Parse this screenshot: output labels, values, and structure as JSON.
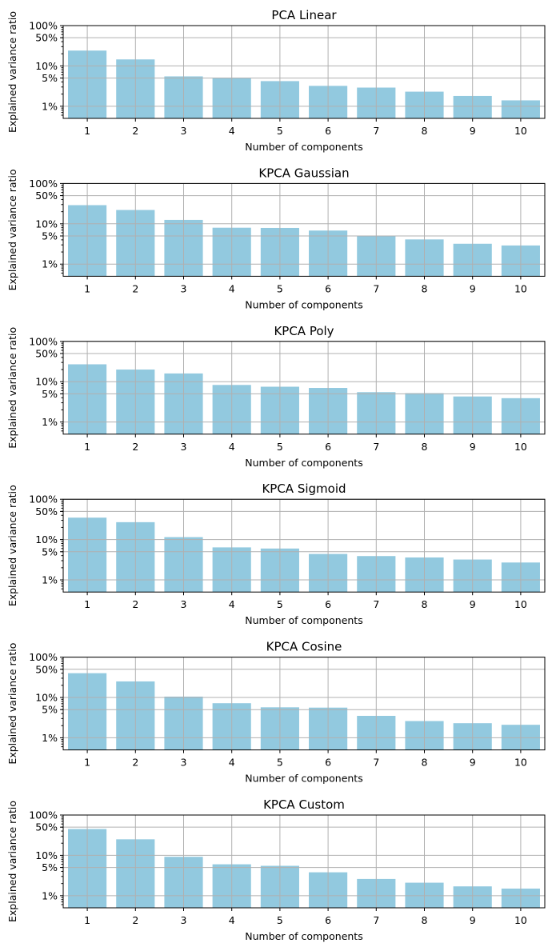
{
  "chart_data": [
    {
      "type": "bar",
      "title": "PCA Linear",
      "xlabel": "Number of components",
      "ylabel": "Explained variance ratio",
      "yscale": "log",
      "ylim": [
        0.005,
        1.0
      ],
      "yticks": [
        {
          "value": 0.01,
          "label": "1%"
        },
        {
          "value": 0.05,
          "label": "5%"
        },
        {
          "value": 0.1,
          "label": "10%"
        },
        {
          "value": 0.5,
          "label": "50%"
        },
        {
          "value": 1.0,
          "label": "100%"
        }
      ],
      "grid": true,
      "color": "#92c9df",
      "categories": [
        "1",
        "2",
        "3",
        "4",
        "5",
        "6",
        "7",
        "8",
        "9",
        "10"
      ],
      "values": [
        0.24,
        0.145,
        0.055,
        0.051,
        0.042,
        0.032,
        0.029,
        0.023,
        0.018,
        0.014
      ]
    },
    {
      "type": "bar",
      "title": "KPCA Gaussian",
      "xlabel": "Number of components",
      "ylabel": "Explained variance ratio",
      "yscale": "log",
      "ylim": [
        0.005,
        1.0
      ],
      "yticks": [
        {
          "value": 0.01,
          "label": "1%"
        },
        {
          "value": 0.05,
          "label": "5%"
        },
        {
          "value": 0.1,
          "label": "10%"
        },
        {
          "value": 0.5,
          "label": "50%"
        },
        {
          "value": 1.0,
          "label": "100%"
        }
      ],
      "grid": true,
      "color": "#92c9df",
      "categories": [
        "1",
        "2",
        "3",
        "4",
        "5",
        "6",
        "7",
        "8",
        "9",
        "10"
      ],
      "values": [
        0.29,
        0.22,
        0.125,
        0.08,
        0.079,
        0.068,
        0.049,
        0.041,
        0.032,
        0.029
      ]
    },
    {
      "type": "bar",
      "title": "KPCA Poly",
      "xlabel": "Number of components",
      "ylabel": "Explained variance ratio",
      "yscale": "log",
      "ylim": [
        0.005,
        1.0
      ],
      "yticks": [
        {
          "value": 0.01,
          "label": "1%"
        },
        {
          "value": 0.05,
          "label": "5%"
        },
        {
          "value": 0.1,
          "label": "10%"
        },
        {
          "value": 0.5,
          "label": "50%"
        },
        {
          "value": 1.0,
          "label": "100%"
        }
      ],
      "grid": true,
      "color": "#92c9df",
      "categories": [
        "1",
        "2",
        "3",
        "4",
        "5",
        "6",
        "7",
        "8",
        "9",
        "10"
      ],
      "values": [
        0.27,
        0.2,
        0.16,
        0.083,
        0.075,
        0.07,
        0.055,
        0.052,
        0.043,
        0.039
      ]
    },
    {
      "type": "bar",
      "title": "KPCA Sigmoid",
      "xlabel": "Number of components",
      "ylabel": "Explained variance ratio",
      "yscale": "log",
      "ylim": [
        0.005,
        1.0
      ],
      "yticks": [
        {
          "value": 0.01,
          "label": "1%"
        },
        {
          "value": 0.05,
          "label": "5%"
        },
        {
          "value": 0.1,
          "label": "10%"
        },
        {
          "value": 0.5,
          "label": "50%"
        },
        {
          "value": 1.0,
          "label": "100%"
        }
      ],
      "grid": true,
      "color": "#92c9df",
      "categories": [
        "1",
        "2",
        "3",
        "4",
        "5",
        "6",
        "7",
        "8",
        "9",
        "10"
      ],
      "values": [
        0.35,
        0.27,
        0.115,
        0.064,
        0.06,
        0.044,
        0.039,
        0.036,
        0.032,
        0.027
      ]
    },
    {
      "type": "bar",
      "title": "KPCA Cosine",
      "xlabel": "Number of components",
      "ylabel": "Explained variance ratio",
      "yscale": "log",
      "ylim": [
        0.005,
        1.0
      ],
      "yticks": [
        {
          "value": 0.01,
          "label": "1%"
        },
        {
          "value": 0.05,
          "label": "5%"
        },
        {
          "value": 0.1,
          "label": "10%"
        },
        {
          "value": 0.5,
          "label": "50%"
        },
        {
          "value": 1.0,
          "label": "100%"
        }
      ],
      "grid": true,
      "color": "#92c9df",
      "categories": [
        "1",
        "2",
        "3",
        "4",
        "5",
        "6",
        "7",
        "8",
        "9",
        "10"
      ],
      "values": [
        0.4,
        0.25,
        0.105,
        0.072,
        0.057,
        0.056,
        0.035,
        0.026,
        0.023,
        0.021
      ]
    },
    {
      "type": "bar",
      "title": "KPCA Custom",
      "xlabel": "Number of components",
      "ylabel": "Explained variance ratio",
      "yscale": "log",
      "ylim": [
        0.005,
        1.0
      ],
      "yticks": [
        {
          "value": 0.01,
          "label": "1%"
        },
        {
          "value": 0.05,
          "label": "5%"
        },
        {
          "value": 0.1,
          "label": "10%"
        },
        {
          "value": 0.5,
          "label": "50%"
        },
        {
          "value": 1.0,
          "label": "100%"
        }
      ],
      "grid": true,
      "color": "#92c9df",
      "categories": [
        "1",
        "2",
        "3",
        "4",
        "5",
        "6",
        "7",
        "8",
        "9",
        "10"
      ],
      "values": [
        0.45,
        0.25,
        0.092,
        0.06,
        0.055,
        0.038,
        0.026,
        0.021,
        0.017,
        0.015
      ]
    }
  ]
}
